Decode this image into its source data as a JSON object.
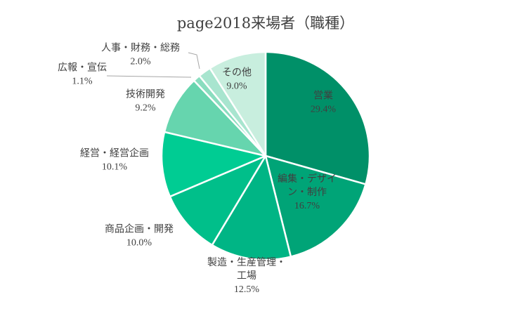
{
  "chart_data": {
    "type": "pie",
    "title": "page2018来場者（職種）",
    "slices": [
      {
        "category": [
          "営業"
        ],
        "value": 29.4,
        "label": "29.4%",
        "color": "#009068"
      },
      {
        "category": [
          "編集・デザイ",
          "ン・制作"
        ],
        "value": 16.7,
        "label": "16.7%",
        "color": "#00A477"
      },
      {
        "category": [
          "製造・生産管理・",
          "工場"
        ],
        "value": 12.5,
        "label": "12.5%",
        "color": "#00B585"
      },
      {
        "category": [
          "商品企画・開発"
        ],
        "value": 10.0,
        "label": "10.0%",
        "color": "#00BF8A"
      },
      {
        "category": [
          "経営・経営企画"
        ],
        "value": 10.1,
        "label": "10.1%",
        "color": "#00CC93"
      },
      {
        "category": [
          "技術開発"
        ],
        "value": 9.2,
        "label": "9.2%",
        "color": "#66D5AE"
      },
      {
        "category": [
          "広報・宣伝"
        ],
        "value": 1.1,
        "label": "1.1%",
        "color": "#8ADDBF"
      },
      {
        "category": [
          "人事・財務・総務"
        ],
        "value": 2.0,
        "label": "2.0%",
        "color": "#A8E5CF"
      },
      {
        "category": [
          "その他"
        ],
        "value": 9.0,
        "label": "9.0%",
        "color": "#C8EEDE"
      }
    ],
    "start_angle_deg": 0,
    "direction": "clockwise",
    "legend": "none"
  }
}
